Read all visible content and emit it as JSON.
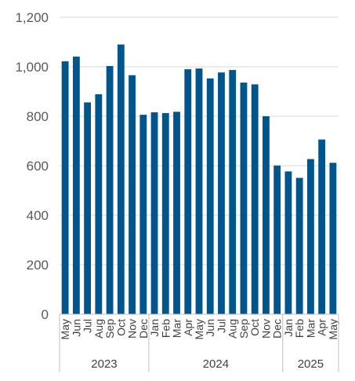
{
  "chart_data": {
    "type": "bar",
    "title": "",
    "xlabel": "",
    "ylabel": "",
    "ylim": [
      0,
      1200
    ],
    "yticks": [
      "0",
      "200",
      "400",
      "600",
      "800",
      "1,000",
      "1,200"
    ],
    "grid": true,
    "bar_color": "#00558C",
    "categories": [
      "May",
      "Jun",
      "Jul",
      "Aug",
      "Sep",
      "Oct",
      "Nov",
      "Dec",
      "Jan",
      "Feb",
      "Mar",
      "Apr",
      "May",
      "Jun",
      "Jul",
      "Aug",
      "Sep",
      "Oct",
      "Nov",
      "Dec",
      "Jan",
      "Feb",
      "Mar",
      "Apr",
      "May"
    ],
    "values": [
      1022,
      1041,
      856,
      889,
      1003,
      1090,
      966,
      806,
      816,
      813,
      818,
      990,
      993,
      953,
      977,
      987,
      936,
      929,
      800,
      601,
      577,
      551,
      627,
      706,
      612
    ],
    "year_groups": [
      {
        "label": "2023",
        "start": 0,
        "end": 7
      },
      {
        "label": "2024",
        "start": 8,
        "end": 19
      },
      {
        "label": "2025",
        "start": 20,
        "end": 24
      }
    ]
  }
}
